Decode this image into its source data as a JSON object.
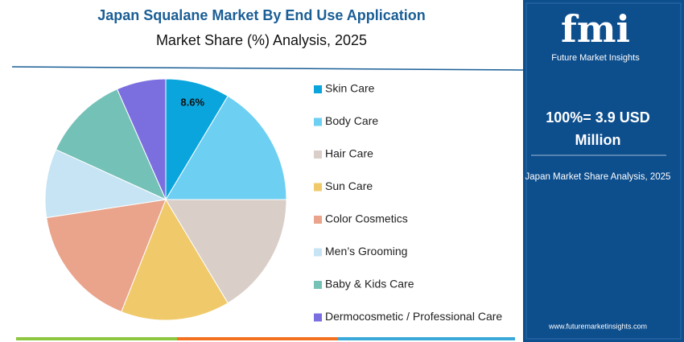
{
  "chart_data": {
    "type": "pie",
    "title": "Japan Squalane Market By End Use Application",
    "subtitle": "Market Share (%) Analysis, 2025",
    "categories": [
      "Skin Care",
      "Body Care",
      "Hair Care",
      "Sun Care",
      "Color Cosmetics",
      "Men’s Grooming",
      "Baby & Kids Care",
      "Dermocosmetic / Professional Care"
    ],
    "values": [
      8.6,
      16.4,
      16.4,
      14.6,
      16.6,
      9.2,
      11.6,
      6.6
    ],
    "value_labels": [
      "8.6%",
      null,
      null,
      null,
      null,
      null,
      null,
      null
    ],
    "colors": [
      "#0aa5dd",
      "#6dcff2",
      "#d9cec8",
      "#f0c96a",
      "#e9a48b",
      "#c6e4f4",
      "#74c1b8",
      "#7b6fe0"
    ],
    "legend": "right"
  },
  "sidebar": {
    "logo": "fmi",
    "brand": "Future Market Insights",
    "total_line1": "100%= 3.9 USD",
    "total_line2": "Million",
    "caption": "Japan Market Share Analysis, 2025",
    "url": "www.futuremarketinsights.com"
  }
}
